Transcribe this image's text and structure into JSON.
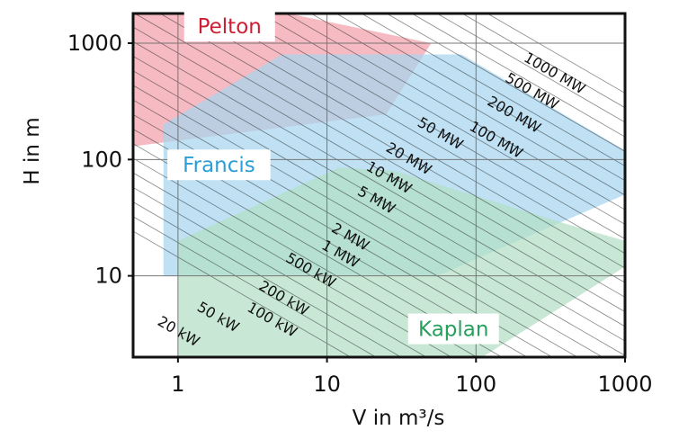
{
  "chart_data": {
    "type": "area",
    "title": "",
    "xlabel": "V in m³/s",
    "ylabel": "H in m",
    "xscale": "log",
    "yscale": "log",
    "xlim": [
      0.5,
      1000
    ],
    "ylim": [
      2,
      1800
    ],
    "xticks": [
      {
        "value": 1,
        "label": "1"
      },
      {
        "value": 10,
        "label": "10"
      },
      {
        "value": 100,
        "label": "100"
      },
      {
        "value": 1000,
        "label": "1000"
      }
    ],
    "yticks": [
      {
        "value": 10,
        "label": "10"
      },
      {
        "value": 100,
        "label": "100"
      },
      {
        "value": 1000,
        "label": "1000"
      }
    ],
    "grid": true,
    "series": [
      {
        "name": "Pelton",
        "color": "#f2a0aa",
        "label_color": "#cc1f34",
        "label_at": [
          1.1,
          1400
        ],
        "polygon": [
          [
            0.5,
            130
          ],
          [
            0.5,
            1800
          ],
          [
            5.5,
            1800
          ],
          [
            50,
            1000
          ],
          [
            25,
            245
          ],
          [
            0.5,
            130
          ]
        ]
      },
      {
        "name": "Francis",
        "color": "#a6d5ee",
        "label_color": "#2a9fd7",
        "label_at": [
          0.85,
          90
        ],
        "polygon": [
          [
            0.8,
            10
          ],
          [
            0.8,
            200
          ],
          [
            5,
            800
          ],
          [
            80,
            800
          ],
          [
            1000,
            120
          ],
          [
            1000,
            50
          ],
          [
            55,
            10
          ],
          [
            0.8,
            10
          ]
        ]
      },
      {
        "name": "Kaplan",
        "color": "#b3dfc5",
        "label_color": "#26a05c",
        "label_at": [
          35,
          3.5
        ],
        "polygon": [
          [
            1,
            2
          ],
          [
            1,
            20
          ],
          [
            12,
            85
          ],
          [
            28,
            80
          ],
          [
            400,
            28
          ],
          [
            1000,
            20
          ],
          [
            1000,
            12
          ],
          [
            110,
            2
          ],
          [
            1,
            2
          ]
        ]
      }
    ],
    "power_lines": [
      {
        "label": "20 kW"
      },
      {
        "label": "50 kW"
      },
      {
        "label": "100 kW"
      },
      {
        "label": "200 kW"
      },
      {
        "label": "500 kW"
      },
      {
        "label": "1 MW"
      },
      {
        "label": "2 MW"
      },
      {
        "label": "5 MW"
      },
      {
        "label": "10 MW"
      },
      {
        "label": "20 MW"
      },
      {
        "label": "50 MW"
      },
      {
        "label": "100 MW"
      },
      {
        "label": "200 MW"
      },
      {
        "label": "500 MW"
      },
      {
        "label": "1000 MW"
      }
    ]
  }
}
